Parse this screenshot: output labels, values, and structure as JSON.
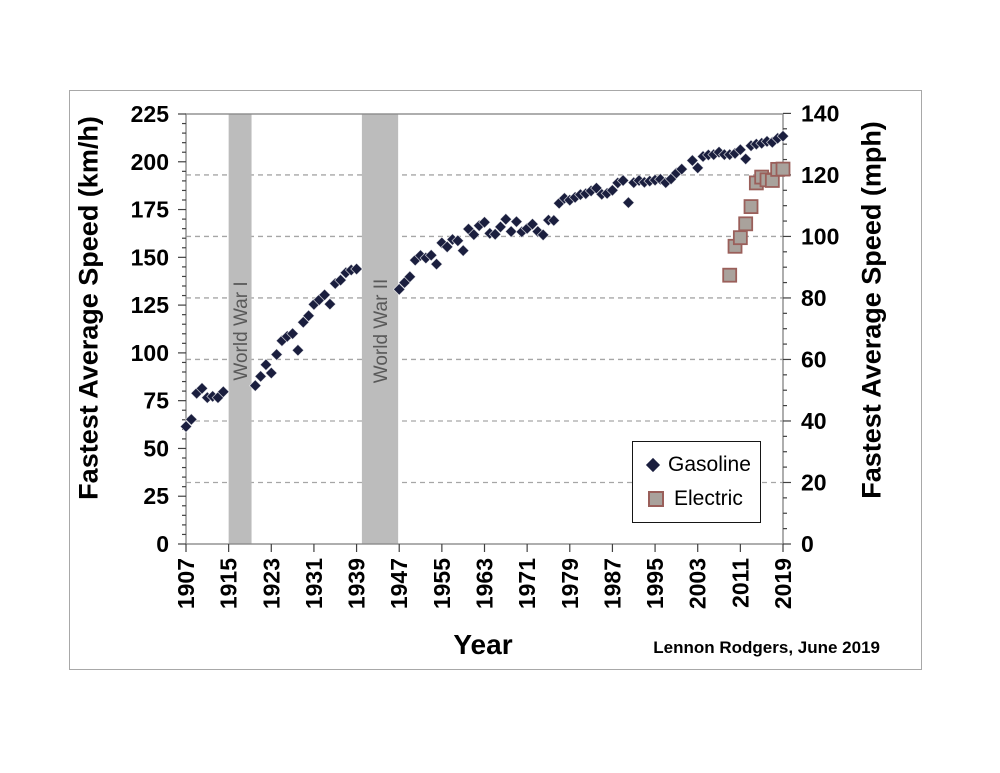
{
  "page": {
    "background": "#ffffff"
  },
  "figure": {
    "attribution": "Lennon Rodgers, June 2019"
  },
  "chart_data": {
    "type": "scatter",
    "title": "",
    "xlabel": "Year",
    "ylabel_left": "Fastest Average Speed (km/h)",
    "ylabel_right": "Fastest Average Speed (mph)",
    "x_range": [
      1907,
      2019
    ],
    "x_ticks": [
      1907,
      1915,
      1923,
      1931,
      1939,
      1947,
      1955,
      1963,
      1971,
      1979,
      1987,
      1995,
      2003,
      2011,
      2019
    ],
    "y_left_range": [
      0,
      225
    ],
    "y_left_ticks": [
      0,
      25,
      50,
      75,
      100,
      125,
      150,
      175,
      200,
      225
    ],
    "y_left_minor_step": 5,
    "y_right_range": [
      0,
      140
    ],
    "y_right_ticks": [
      0,
      20,
      40,
      60,
      80,
      100,
      120,
      140
    ],
    "y_right_minor_step": 5,
    "mph_to_kmh": 1.609344,
    "gridlines_mph": [
      20,
      40,
      60,
      80,
      100,
      120
    ],
    "grid_on": true,
    "legend_position": "inside-lower-right",
    "shaded_bands": [
      {
        "label": "World War I",
        "x0": 1915.0,
        "x1": 1919.3
      },
      {
        "label": "World War II",
        "x0": 1940.0,
        "x1": 1946.8
      }
    ],
    "series": [
      {
        "name": "Gasoline",
        "marker": "diamond",
        "color": "#1a1e3e",
        "units": "mph",
        "points": [
          [
            1907,
            38.2
          ],
          [
            1908,
            40.5
          ],
          [
            1909,
            49.0
          ],
          [
            1910,
            50.6
          ],
          [
            1911,
            47.6
          ],
          [
            1912,
            48.0
          ],
          [
            1913,
            47.6
          ],
          [
            1914,
            49.5
          ],
          [
            1920,
            51.5
          ],
          [
            1921,
            54.5
          ],
          [
            1922,
            58.3
          ],
          [
            1923,
            55.6
          ],
          [
            1924,
            61.6
          ],
          [
            1925,
            66.1
          ],
          [
            1926,
            67.5
          ],
          [
            1927,
            68.4
          ],
          [
            1928,
            63.0
          ],
          [
            1929,
            72.1
          ],
          [
            1930,
            74.2
          ],
          [
            1931,
            77.9
          ],
          [
            1932,
            79.4
          ],
          [
            1933,
            81.0
          ],
          [
            1934,
            78.0
          ],
          [
            1935,
            84.7
          ],
          [
            1936,
            85.8
          ],
          [
            1937,
            88.2
          ],
          [
            1938,
            89.1
          ],
          [
            1939,
            89.4
          ],
          [
            1947,
            82.8
          ],
          [
            1948,
            85.0
          ],
          [
            1949,
            86.9
          ],
          [
            1950,
            92.3
          ],
          [
            1951,
            93.8
          ],
          [
            1952,
            93.0
          ],
          [
            1953,
            93.9
          ],
          [
            1954,
            91.0
          ],
          [
            1955,
            97.9
          ],
          [
            1956,
            96.6
          ],
          [
            1957,
            99.0
          ],
          [
            1958,
            98.6
          ],
          [
            1959,
            95.4
          ],
          [
            1960,
            102.4
          ],
          [
            1961,
            100.6
          ],
          [
            1962,
            103.5
          ],
          [
            1963,
            104.6
          ],
          [
            1964,
            101.0
          ],
          [
            1965,
            100.7
          ],
          [
            1966,
            103.1
          ],
          [
            1967,
            105.6
          ],
          [
            1968,
            101.6
          ],
          [
            1969,
            104.8
          ],
          [
            1970,
            101.5
          ],
          [
            1971,
            102.6
          ],
          [
            1972,
            104.0
          ],
          [
            1973,
            101.6
          ],
          [
            1974,
            100.5
          ],
          [
            1975,
            105.3
          ],
          [
            1976,
            105.2
          ],
          [
            1977,
            110.8
          ],
          [
            1978,
            112.4
          ],
          [
            1979,
            111.8
          ],
          [
            1980,
            112.7
          ],
          [
            1981,
            113.6
          ],
          [
            1982,
            113.9
          ],
          [
            1983,
            114.8
          ],
          [
            1984,
            115.7
          ],
          [
            1985,
            113.7
          ],
          [
            1986,
            114.0
          ],
          [
            1987,
            115.0
          ],
          [
            1988,
            117.4
          ],
          [
            1989,
            118.2
          ],
          [
            1990,
            111.0
          ],
          [
            1991,
            117.5
          ],
          [
            1992,
            118.2
          ],
          [
            1993,
            117.6
          ],
          [
            1994,
            118.0
          ],
          [
            1995,
            118.3
          ],
          [
            1996,
            118.6
          ],
          [
            1997,
            117.5
          ],
          [
            1998,
            118.7
          ],
          [
            1999,
            120.6
          ],
          [
            2000,
            121.9
          ],
          [
            2002,
            124.7
          ],
          [
            2003,
            122.3
          ],
          [
            2004,
            126.0
          ],
          [
            2005,
            126.5
          ],
          [
            2006,
            126.6
          ],
          [
            2007,
            127.4
          ],
          [
            2008,
            126.6
          ],
          [
            2009,
            126.6
          ],
          [
            2010,
            127.0
          ],
          [
            2011,
            128.2
          ],
          [
            2012,
            125.2
          ],
          [
            2013,
            129.5
          ],
          [
            2014,
            130.0
          ],
          [
            2015,
            130.3
          ],
          [
            2016,
            130.9
          ],
          [
            2017,
            130.6
          ],
          [
            2018,
            131.9
          ],
          [
            2019,
            132.6
          ]
        ]
      },
      {
        "name": "Electric",
        "marker": "square",
        "color": "#a9a29c",
        "stroke": "#9a5f5a",
        "units": "mph",
        "points": [
          [
            2009,
            87.4
          ],
          [
            2010,
            96.8
          ],
          [
            2011,
            99.6
          ],
          [
            2012,
            104.1
          ],
          [
            2013,
            109.7
          ],
          [
            2014,
            117.4
          ],
          [
            2015,
            119.3
          ],
          [
            2016,
            118.4
          ],
          [
            2017,
            118.2
          ],
          [
            2018,
            121.8
          ],
          [
            2019,
            121.9
          ]
        ]
      }
    ]
  },
  "colors": {
    "band_fill": "#bcbcbc",
    "band_text": "#595959",
    "gridline": "#a6a6a6",
    "plot_border": "#8c8c8c",
    "tick": "#404040",
    "tick_label": "#000000",
    "diamond_fill": "#1a1e3e",
    "square_fill": "#a9a29c",
    "square_stroke": "#9a5f5a"
  }
}
